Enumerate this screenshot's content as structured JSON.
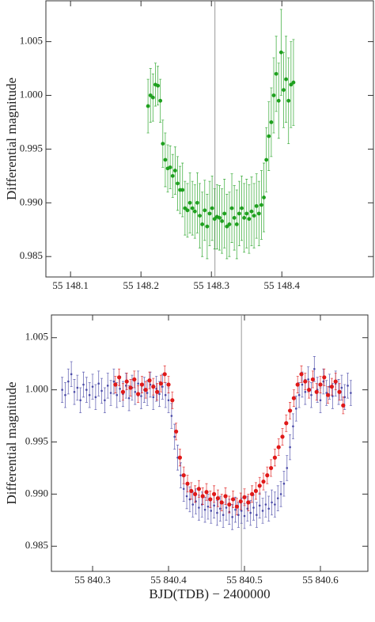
{
  "chart_data": [
    {
      "type": "scatter",
      "y_label": "Differential magnitude",
      "xlim": [
        55148.065,
        55148.53
      ],
      "ylim": [
        0.9831,
        1.0088
      ],
      "xticks": [
        {
          "value": 55148.1,
          "label": "55 148.1"
        },
        {
          "value": 55148.2,
          "label": "55 148.2"
        },
        {
          "value": 55148.3,
          "label": "55 148.3"
        },
        {
          "value": 55148.4,
          "label": "55 148.4"
        }
      ],
      "yticks": [
        1.005,
        {
          "value": 1,
          "label": "1.000"
        },
        0.995,
        {
          "value": 0.99,
          "label": "0.990"
        },
        0.985
      ],
      "vline": 55148.305,
      "vline_color": "#999999",
      "series": [
        {
          "color": "#1ea01e",
          "x": [
            55148.21,
            55148.2135,
            55148.217,
            55148.2205,
            55148.224,
            55148.2275,
            55148.231,
            55148.2345,
            55148.238,
            55148.2415,
            55148.245,
            55148.2485,
            55148.252,
            55148.2555,
            55148.259,
            55148.2625,
            55148.266,
            55148.2695,
            55148.273,
            55148.2765,
            55148.28,
            55148.2835,
            55148.287,
            55148.2905,
            55148.294,
            55148.2975,
            55148.301,
            55148.3045,
            55148.308,
            55148.3115,
            55148.315,
            55148.3185,
            55148.322,
            55148.3255,
            55148.329,
            55148.3325,
            55148.336,
            55148.3395,
            55148.343,
            55148.3465,
            55148.35,
            55148.3535,
            55148.357,
            55148.3605,
            55148.364,
            55148.3675,
            55148.371,
            55148.3745,
            55148.378,
            55148.3815,
            55148.385,
            55148.3885,
            55148.392,
            55148.3955,
            55148.399,
            55148.4025,
            55148.406,
            55148.4095,
            55148.413,
            55148.4165
          ],
          "values": [
            0.999,
            1.0,
            0.9998,
            1.001,
            1.0009,
            0.9995,
            0.9955,
            0.994,
            0.9932,
            0.9933,
            0.9925,
            0.993,
            0.9918,
            0.9912,
            0.9912,
            0.9895,
            0.9893,
            0.99,
            0.9895,
            0.9892,
            0.99,
            0.9888,
            0.988,
            0.9893,
            0.9878,
            0.989,
            0.9895,
            0.9885,
            0.9887,
            0.9886,
            0.9883,
            0.989,
            0.9878,
            0.988,
            0.9895,
            0.9886,
            0.988,
            0.989,
            0.9895,
            0.9886,
            0.989,
            0.9885,
            0.9892,
            0.9888,
            0.9897,
            0.989,
            0.9898,
            0.9905,
            0.994,
            0.9962,
            0.9975,
            1.0,
            1.002,
            0.9995,
            1.004,
            1.0005,
            1.0015,
            0.9995,
            1.001,
            1.0012
          ],
          "errors": [
            0.0025,
            0.0025,
            0.0022,
            0.002,
            0.0018,
            0.002,
            0.0022,
            0.0025,
            0.0022,
            0.002,
            0.002,
            0.0022,
            0.0025,
            0.0022,
            0.0025,
            0.0025,
            0.0025,
            0.0028,
            0.0025,
            0.0025,
            0.0028,
            0.003,
            0.003,
            0.0028,
            0.003,
            0.003,
            0.003,
            0.0028,
            0.003,
            0.003,
            0.003,
            0.0032,
            0.003,
            0.003,
            0.0032,
            0.003,
            0.0032,
            0.003,
            0.003,
            0.0032,
            0.0032,
            0.0032,
            0.0032,
            0.003,
            0.003,
            0.003,
            0.0032,
            0.0032,
            0.003,
            0.0032,
            0.0032,
            0.0035,
            0.0035,
            0.0035,
            0.004,
            0.0035,
            0.004,
            0.004,
            0.004,
            0.004
          ]
        }
      ]
    },
    {
      "type": "scatter",
      "y_label": "Differential magnitude",
      "x_label": "BJD(TDB) − 2400000",
      "xlim": [
        55840.2458,
        55840.6625
      ],
      "ylim": [
        0.98259,
        1.00718
      ],
      "xticks": [
        {
          "value": 55840.3,
          "label": "55 840.3"
        },
        {
          "value": 55840.4,
          "label": "55 840.4"
        },
        {
          "value": 55840.5,
          "label": "55 840.5"
        },
        {
          "value": 55840.6,
          "label": "55 840.6"
        }
      ],
      "yticks": [
        1.005,
        {
          "value": 1,
          "label": "1.000"
        },
        0.995,
        {
          "value": 0.99,
          "label": "0.990"
        },
        0.985
      ],
      "vline": 55840.496,
      "vline_color": "#999999",
      "series": [
        {
          "color": "#4a4aa8",
          "error": 0.0012,
          "x": [
            55840.26,
            55840.264,
            55840.268,
            55840.272,
            55840.276,
            55840.28,
            55840.284,
            55840.288,
            55840.292,
            55840.296,
            55840.3,
            55840.304,
            55840.308,
            55840.312,
            55840.316,
            55840.32,
            55840.324,
            55840.328,
            55840.332,
            55840.336,
            55840.34,
            55840.344,
            55840.348,
            55840.352,
            55840.356,
            55840.36,
            55840.364,
            55840.368,
            55840.372,
            55840.376,
            55840.38,
            55840.384,
            55840.388,
            55840.392,
            55840.396,
            55840.4,
            55840.404,
            55840.408,
            55840.412,
            55840.416,
            55840.42,
            55840.424,
            55840.428,
            55840.432,
            55840.436,
            55840.44,
            55840.444,
            55840.448,
            55840.452,
            55840.456,
            55840.46,
            55840.464,
            55840.468,
            55840.472,
            55840.476,
            55840.48,
            55840.484,
            55840.488,
            55840.492,
            55840.496,
            55840.5,
            55840.504,
            55840.508,
            55840.512,
            55840.516,
            55840.52,
            55840.524,
            55840.528,
            55840.532,
            55840.536,
            55840.54,
            55840.544,
            55840.548,
            55840.552,
            55840.556,
            55840.56,
            55840.564,
            55840.568,
            55840.572,
            55840.576,
            55840.58,
            55840.584,
            55840.588,
            55840.592,
            55840.596,
            55840.6,
            55840.604,
            55840.608,
            55840.612,
            55840.616,
            55840.62,
            55840.624,
            55840.628,
            55840.632,
            55840.636,
            55840.64
          ],
          "values": [
            1.0,
            0.9995,
            1.0008,
            1.0015,
            0.9998,
            1.0002,
            0.999,
            1.0005,
            1.0,
            0.9995,
            1.0003,
            0.9993,
            1.0006,
            0.9999,
            0.999,
            1.0004,
            0.9997,
            1.0008,
            0.9995,
            1.0001,
            0.9996,
            1.0004,
            0.9992,
            1.0002,
            0.9998,
            1.0006,
            0.9994,
            1.0,
            0.9997,
            1.0005,
            0.9993,
            1.0001,
            0.9996,
            1.0003,
            0.9995,
            0.999,
            0.9975,
            0.9955,
            0.9935,
            0.9918,
            0.9905,
            0.9898,
            0.9895,
            0.989,
            0.9893,
            0.9887,
            0.989,
            0.9885,
            0.9888,
            0.9884,
            0.9889,
            0.9882,
            0.9886,
            0.988,
            0.9887,
            0.9883,
            0.9878,
            0.9885,
            0.988,
            0.9884,
            0.9879,
            0.9886,
            0.9882,
            0.9887,
            0.988,
            0.9889,
            0.9884,
            0.989,
            0.9886,
            0.9892,
            0.989,
            0.9896,
            0.99,
            0.991,
            0.9925,
            0.9945,
            0.9965,
            0.9982,
            0.9995,
            1.0005,
            0.9998,
            1.001,
            0.9995,
            1.002,
            1.0,
            0.999,
            1.0008,
            0.9997,
            1.0003,
            0.9994,
            1.0006,
            0.9998,
            1.0002,
            0.9993,
            1.0004,
            0.9997
          ]
        },
        {
          "color": "#e01818",
          "error": 0.0008,
          "x": [
            55840.33,
            55840.335,
            55840.34,
            55840.345,
            55840.35,
            55840.355,
            55840.36,
            55840.365,
            55840.37,
            55840.375,
            55840.38,
            55840.385,
            55840.39,
            55840.395,
            55840.4,
            55840.405,
            55840.41,
            55840.415,
            55840.42,
            55840.425,
            55840.43,
            55840.435,
            55840.44,
            55840.445,
            55840.45,
            55840.455,
            55840.46,
            55840.465,
            55840.47,
            55840.475,
            55840.48,
            55840.485,
            55840.49,
            55840.495,
            55840.5,
            55840.505,
            55840.51,
            55840.515,
            55840.52,
            55840.525,
            55840.53,
            55840.535,
            55840.54,
            55840.545,
            55840.55,
            55840.555,
            55840.56,
            55840.565,
            55840.57,
            55840.575,
            55840.58,
            55840.585,
            55840.59,
            55840.595,
            55840.6,
            55840.605,
            55840.61,
            55840.615,
            55840.62,
            55840.625,
            55840.63
          ],
          "values": [
            1.0005,
            1.0012,
            0.9998,
            1.0008,
            1.0002,
            1.001,
            0.9996,
            1.0005,
            1.0,
            1.0009,
            1.0003,
            0.9998,
            1.0006,
            1.0015,
            1.0005,
            0.999,
            0.996,
            0.9935,
            0.9918,
            0.991,
            0.9903,
            0.99,
            0.9905,
            0.9898,
            0.9902,
            0.9895,
            0.99,
            0.9896,
            0.9892,
            0.9898,
            0.989,
            0.9895,
            0.9888,
            0.9893,
            0.9897,
            0.9892,
            0.99,
            0.9903,
            0.9908,
            0.9912,
            0.9918,
            0.9925,
            0.9935,
            0.9945,
            0.9955,
            0.9968,
            0.998,
            0.9992,
            1.0005,
            1.0015,
            1.0008,
            1.0,
            1.001,
            0.9998,
            1.0005,
            1.0012,
            0.9995,
            1.0003,
            1.0008,
            0.9998,
            0.9985
          ]
        }
      ]
    }
  ]
}
